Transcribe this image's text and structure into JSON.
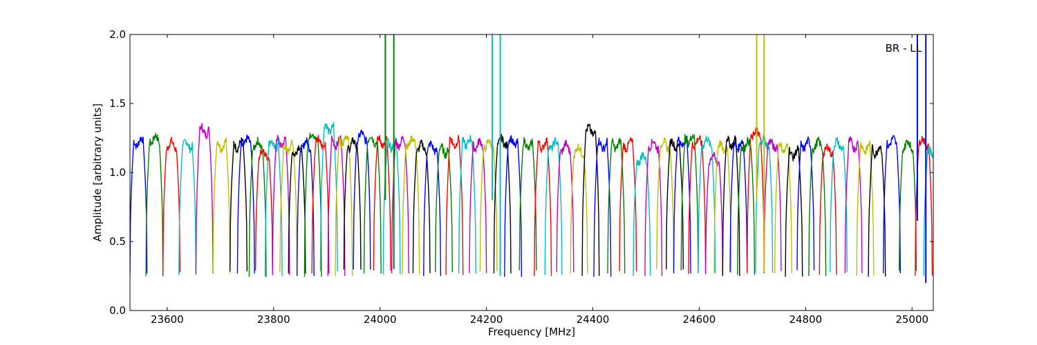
{
  "chart_data": {
    "type": "line",
    "title": "",
    "annotation": "BR - LL",
    "xlabel": "Frequency [MHz]",
    "ylabel": "Amplitude [arbitrary units]",
    "xlim": [
      23530,
      25040
    ],
    "ylim": [
      0.0,
      2.0
    ],
    "x_ticks": [
      23600,
      23800,
      24000,
      24200,
      24400,
      24600,
      24800,
      25000
    ],
    "y_ticks": [
      0.0,
      0.5,
      1.0,
      1.5,
      2.0
    ],
    "x_tick_labels": [
      "23600",
      "23800",
      "24000",
      "24200",
      "24400",
      "24600",
      "24800",
      "25000"
    ],
    "y_tick_labels": [
      "0.0",
      "0.5",
      "1.0",
      "1.5",
      "2.0"
    ],
    "grid": false,
    "legend": "none",
    "color_cycle": [
      "#0000ff",
      "#008000",
      "#ff0000",
      "#00bfbf",
      "#bf00bf",
      "#bfbf00",
      "#000000"
    ],
    "channel_width_mhz": 32,
    "channel_starts_mhz": [
      23530,
      23560,
      23592,
      23622,
      23654,
      23686,
      23718,
      23732,
      23754,
      23766,
      23784,
      23798,
      23812,
      23828,
      23844,
      23858,
      23872,
      23888,
      23902,
      23916,
      23932,
      23950,
      23970,
      23988,
      24006,
      24022,
      24042,
      24062,
      24082,
      24104,
      24124,
      24148,
      24168,
      24188,
      24214,
      24234,
      24262,
      24290,
      24310,
      24332,
      24358,
      24380,
      24402,
      24428,
      24450,
      24476,
      24498,
      24520,
      24538,
      24552,
      24566,
      24580,
      24598,
      24612,
      24628,
      24644,
      24658,
      24672,
      24690,
      24706,
      24722,
      24742,
      24762,
      24784,
      24806,
      24826,
      24846,
      24874,
      24896,
      24918,
      24946,
      24976,
      25006,
      25022
    ],
    "channel_band_levels": [
      1.22,
      1.24,
      1.2,
      1.2,
      1.3,
      1.2,
      1.2,
      1.22,
      1.2,
      1.14,
      1.2,
      1.22,
      1.18,
      1.16,
      1.2,
      1.26,
      1.22,
      1.32,
      1.22,
      1.24,
      1.2,
      1.26,
      1.24,
      1.22,
      1.2,
      1.22,
      1.22,
      1.18,
      1.18,
      1.16,
      1.22,
      1.22,
      1.2,
      1.2,
      1.22,
      1.22,
      1.2,
      1.2,
      1.2,
      1.18,
      1.16,
      1.3,
      1.2,
      1.2,
      1.2,
      1.1,
      1.2,
      1.2,
      1.2,
      1.22,
      1.24,
      1.22,
      1.22,
      1.1,
      1.18,
      1.22,
      1.2,
      1.2,
      1.28,
      1.22,
      1.2,
      1.18,
      1.14,
      1.2,
      1.2,
      1.16,
      1.2,
      1.2,
      1.18,
      1.16,
      1.22,
      1.2,
      1.22,
      1.14
    ],
    "channel_minimum": 0.27,
    "spikes": [
      {
        "x": 24010,
        "y_min": 0.8,
        "y_max": 2.0,
        "color": "#008000"
      },
      {
        "x": 24026,
        "y_min": 0.3,
        "y_max": 2.0,
        "color": "#008000"
      },
      {
        "x": 24211,
        "y_min": 0.8,
        "y_max": 2.0,
        "color": "#00bfbf"
      },
      {
        "x": 24226,
        "y_min": 0.25,
        "y_max": 2.0,
        "color": "#00bfbf"
      },
      {
        "x": 24708,
        "y_min": 0.8,
        "y_max": 2.0,
        "color": "#bfbf00"
      },
      {
        "x": 24722,
        "y_min": 0.28,
        "y_max": 2.0,
        "color": "#bfbf00"
      },
      {
        "x": 25010,
        "y_min": 0.65,
        "y_max": 2.0,
        "color": "#0000ff"
      },
      {
        "x": 25026,
        "y_min": 0.2,
        "y_max": 2.0,
        "color": "#0000ff"
      }
    ]
  }
}
